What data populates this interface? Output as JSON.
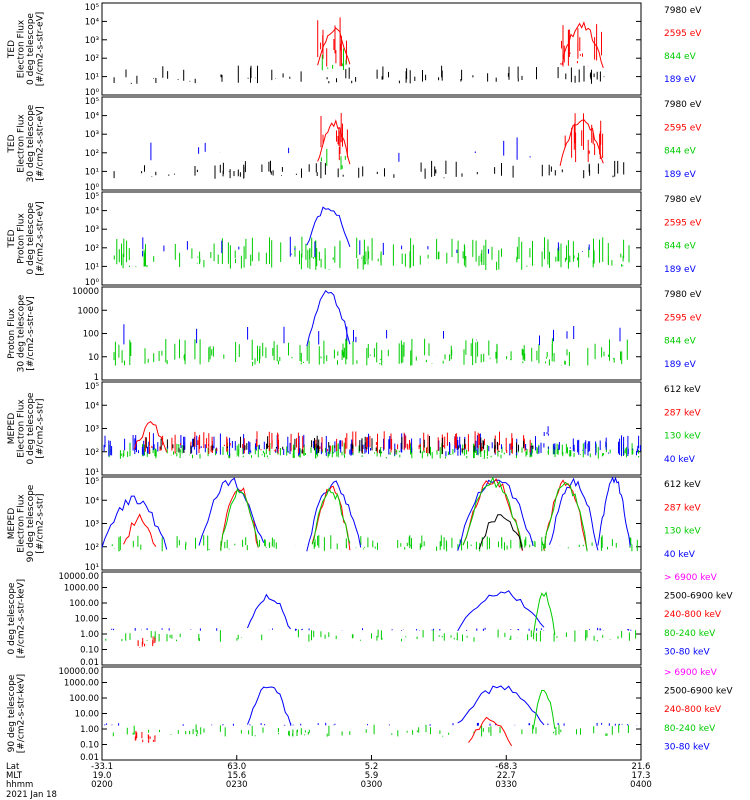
{
  "chart_data": {
    "type": "line",
    "title": "",
    "date_label": "2021 Jan 18",
    "x_row_labels": [
      "Lat",
      "MLT",
      "hhmm"
    ],
    "x_ticks": [
      {
        "lat": "-33.1",
        "mlt": "19.0",
        "hhmm": "0200"
      },
      {
        "lat": "63.0",
        "mlt": "15.6",
        "hhmm": "0230"
      },
      {
        "lat": "5.2",
        "mlt": "5.9",
        "hhmm": "0300"
      },
      {
        "lat": "-68.3",
        "mlt": "22.7",
        "hhmm": "0330"
      },
      {
        "lat": "21.6",
        "mlt": "17.3",
        "hhmm": "0400"
      }
    ],
    "panels": [
      {
        "ylabel": [
          "TED",
          "Electron Flux",
          "0 deg telescope",
          "[#/cm2-s-str-eV]"
        ],
        "yscale": "log",
        "ylim_exp": [
          0,
          5
        ],
        "tick_labels": [
          "10⁵",
          "10⁴",
          "10³",
          "10²",
          "10¹",
          "10⁰"
        ],
        "channels": [
          {
            "label": "7980 eV",
            "color": "#000000"
          },
          {
            "label": "2595 eV",
            "color": "#ff0000"
          },
          {
            "label": "844 eV",
            "color": "#00cc00"
          },
          {
            "label": "189 eV",
            "color": "#0000ff"
          }
        ]
      },
      {
        "ylabel": [
          "TED",
          "Electron Flux",
          "30 deg telescope",
          "[#/cm2-s-str-eV]"
        ],
        "yscale": "log",
        "ylim_exp": [
          0,
          5
        ],
        "tick_labels": [
          "10⁵",
          "10⁴",
          "10³",
          "10²",
          "10¹",
          "10⁰"
        ],
        "channels": [
          {
            "label": "7980 eV",
            "color": "#000000"
          },
          {
            "label": "2595 eV",
            "color": "#ff0000"
          },
          {
            "label": "844 eV",
            "color": "#00cc00"
          },
          {
            "label": "189 eV",
            "color": "#0000ff"
          }
        ]
      },
      {
        "ylabel": [
          "TED",
          "Proton Flux",
          "0 deg telescope",
          "[#/cm2-s-str-eV]"
        ],
        "yscale": "log",
        "ylim_exp": [
          0,
          5
        ],
        "tick_labels": [
          "10⁵",
          "10⁴",
          "10³",
          "10²",
          "10¹",
          "10⁰"
        ],
        "channels": [
          {
            "label": "7980 eV",
            "color": "#000000"
          },
          {
            "label": "2595 eV",
            "color": "#ff0000"
          },
          {
            "label": "844 eV",
            "color": "#00cc00"
          },
          {
            "label": "189 eV",
            "color": "#0000ff"
          }
        ]
      },
      {
        "ylabel": [
          "Proton Flux",
          "30 deg telescope",
          "[#/cm2-s-str-eV]"
        ],
        "yscale": "log",
        "ylim_exp": [
          0,
          4
        ],
        "tick_labels": [
          "10000",
          "1000",
          "100",
          "10",
          "1"
        ],
        "channels": [
          {
            "label": "7980 eV",
            "color": "#000000"
          },
          {
            "label": "2595 eV",
            "color": "#ff0000"
          },
          {
            "label": "844 eV",
            "color": "#00cc00"
          },
          {
            "label": "189 eV",
            "color": "#0000ff"
          }
        ]
      },
      {
        "ylabel": [
          "MEPED",
          "Electron Flux",
          "0 deg telescope",
          "[#/cm2-s-str]"
        ],
        "yscale": "log",
        "ylim_exp": [
          1,
          5
        ],
        "tick_labels": [
          "10⁵",
          "10⁴",
          "10³",
          "10²",
          "10¹"
        ],
        "channels": [
          {
            "label": "612 keV",
            "color": "#000000"
          },
          {
            "label": "287 keV",
            "color": "#ff0000"
          },
          {
            "label": "130 keV",
            "color": "#00cc00"
          },
          {
            "label": "40 keV",
            "color": "#0000ff"
          }
        ]
      },
      {
        "ylabel": [
          "MEPED",
          "Electron Flux",
          "90 deg telescope",
          "[#/cm2-s-str]"
        ],
        "yscale": "log",
        "ylim_exp": [
          1,
          5
        ],
        "tick_labels": [
          "10⁵",
          "10⁴",
          "10³",
          "10²",
          "10¹"
        ],
        "channels": [
          {
            "label": "612 keV",
            "color": "#000000"
          },
          {
            "label": "287 keV",
            "color": "#ff0000"
          },
          {
            "label": "130 keV",
            "color": "#00cc00"
          },
          {
            "label": "40 keV",
            "color": "#0000ff"
          }
        ]
      },
      {
        "ylabel": [
          "0 deg telescope",
          "[#/cm2-s-str-keV]"
        ],
        "yscale": "log",
        "ylim_exp": [
          -2,
          4
        ],
        "tick_labels": [
          "10000.00",
          "1000.00",
          "100.00",
          "10.00",
          "1.00",
          "0.10",
          "0.01"
        ],
        "channels": [
          {
            "label": "> 6900 keV",
            "color": "#ff00ff"
          },
          {
            "label": "2500-6900 keV",
            "color": "#000000"
          },
          {
            "label": "240-800 keV",
            "color": "#ff0000"
          },
          {
            "label": "80-240 keV",
            "color": "#00cc00"
          },
          {
            "label": "30-80 keV",
            "color": "#0000ff"
          }
        ]
      },
      {
        "ylabel": [
          "90 deg telescope",
          "[#/cm2-s-str-keV]"
        ],
        "yscale": "log",
        "ylim_exp": [
          -2,
          4
        ],
        "tick_labels": [
          "10000.00",
          "1000.00",
          "100.00",
          "10.00",
          "1.00",
          "0.10",
          "0.01"
        ],
        "channels": [
          {
            "label": "> 6900 keV",
            "color": "#ff00ff"
          },
          {
            "label": "2500-6900 keV",
            "color": "#000000"
          },
          {
            "label": "240-800 keV",
            "color": "#ff0000"
          },
          {
            "label": "80-240 keV",
            "color": "#00cc00"
          },
          {
            "label": "30-80 keV",
            "color": "#0000ff"
          }
        ]
      }
    ]
  }
}
